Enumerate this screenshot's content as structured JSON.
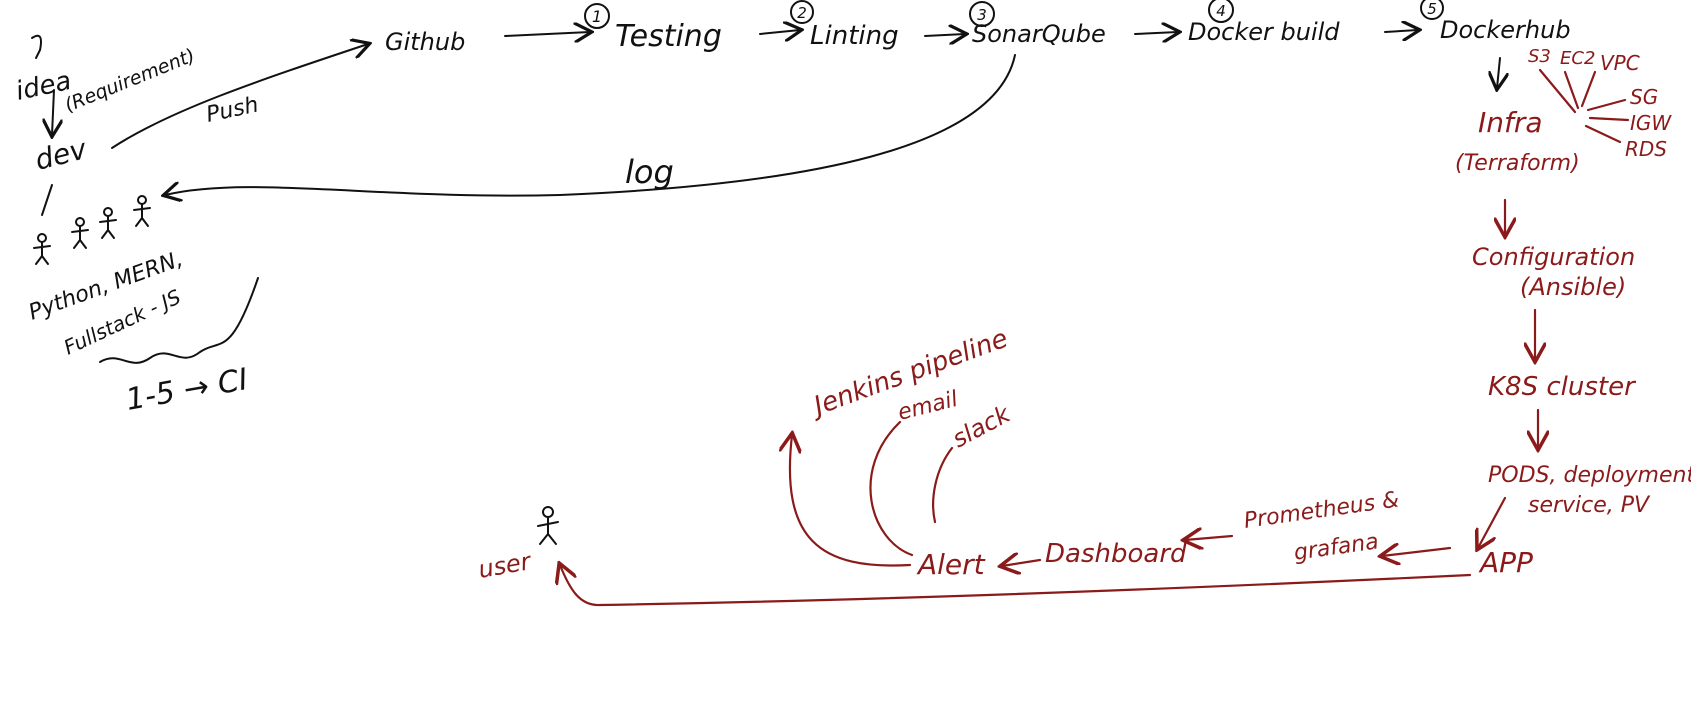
{
  "colors": {
    "ink": "#111111",
    "accent": "#8b1a1a",
    "background": "#ffffff"
  },
  "ci": {
    "idea": "idea",
    "requirement": "(Requirement)",
    "dev": "dev",
    "push": "Push",
    "github": "Github",
    "stages": [
      {
        "num": "1",
        "label": "Testing"
      },
      {
        "num": "2",
        "label": "Linting"
      },
      {
        "num": "3",
        "label": "SonarQube"
      },
      {
        "num": "4",
        "label": "Docker build"
      },
      {
        "num": "5",
        "label": "Dockerhub"
      }
    ],
    "log": "log",
    "team_stack": "Python, MERN,",
    "fullstack": "Fullstack - JS",
    "ci_range": "1-5 → CI"
  },
  "cd": {
    "infra": "Infra",
    "terraform": "(Terraform)",
    "infra_resources": [
      "S3",
      "EC2",
      "VPC",
      "SG",
      "IGW",
      "RDS"
    ],
    "configuration": "Configuration",
    "ansible": "(Ansible)",
    "k8s": "K8S cluster",
    "k8s_objects": "PODS, deployment,",
    "k8s_objects2": "service, PV",
    "app": "APP",
    "prometheus": "Prometheus &",
    "grafana": "grafana",
    "dashboard": "Dashboard",
    "alert": "Alert",
    "alert_targets": [
      "Jenkins pipeline",
      "email",
      "slack"
    ],
    "user": "user"
  }
}
